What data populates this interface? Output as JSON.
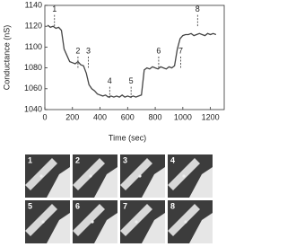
{
  "chart_data": {
    "type": "line",
    "y_label": "Conductance (nS)",
    "x_label": "Time (sec)",
    "xlim": [
      0,
      1300
    ],
    "xticks": [
      0,
      200,
      400,
      600,
      800,
      1000,
      1200
    ],
    "ylim": [
      1040,
      1140
    ],
    "yticks": [
      1040,
      1060,
      1080,
      1100,
      1120,
      1140
    ],
    "series": [
      {
        "color": "#444444",
        "x": [
          20,
          40,
          60,
          80,
          100,
          120,
          140,
          160,
          180,
          200,
          220,
          240,
          260,
          280,
          300,
          320,
          340,
          360,
          380,
          400,
          420,
          440,
          460,
          480,
          500,
          520,
          540,
          560,
          580,
          600,
          620,
          640,
          660,
          680,
          700,
          720,
          740,
          760,
          780,
          800,
          820,
          840,
          860,
          880,
          900,
          920,
          940,
          960,
          980,
          1000,
          1020,
          1040,
          1060,
          1080,
          1100,
          1120,
          1140,
          1160,
          1180,
          1200,
          1220,
          1240
        ],
        "values": [
          1121,
          1119,
          1120,
          1118,
          1119,
          1116,
          1098,
          1092,
          1086,
          1085,
          1084,
          1086,
          1083,
          1082,
          1075,
          1064,
          1060,
          1058,
          1055,
          1054,
          1053,
          1054,
          1052,
          1053,
          1052,
          1053,
          1052,
          1054,
          1052,
          1053,
          1052,
          1053,
          1052,
          1053,
          1054,
          1078,
          1080,
          1079,
          1081,
          1080,
          1079,
          1081,
          1080,
          1079,
          1081,
          1080,
          1082,
          1098,
          1108,
          1111,
          1112,
          1112,
          1113,
          1111,
          1112,
          1113,
          1112,
          1111,
          1113,
          1112,
          1113,
          1112
        ]
      }
    ],
    "annotations": [
      {
        "text": "1",
        "x": 70,
        "y": 1136
      },
      {
        "text": "2",
        "x": 240,
        "y": 1096
      },
      {
        "text": "3",
        "x": 315,
        "y": 1096
      },
      {
        "text": "4",
        "x": 470,
        "y": 1067
      },
      {
        "text": "5",
        "x": 625,
        "y": 1067
      },
      {
        "text": "6",
        "x": 825,
        "y": 1096
      },
      {
        "text": "7",
        "x": 985,
        "y": 1096
      },
      {
        "text": "8",
        "x": 1107,
        "y": 1136
      }
    ]
  },
  "panels": {
    "labels": [
      "1",
      "2",
      "3",
      "4",
      "5",
      "6",
      "7",
      "8"
    ]
  }
}
